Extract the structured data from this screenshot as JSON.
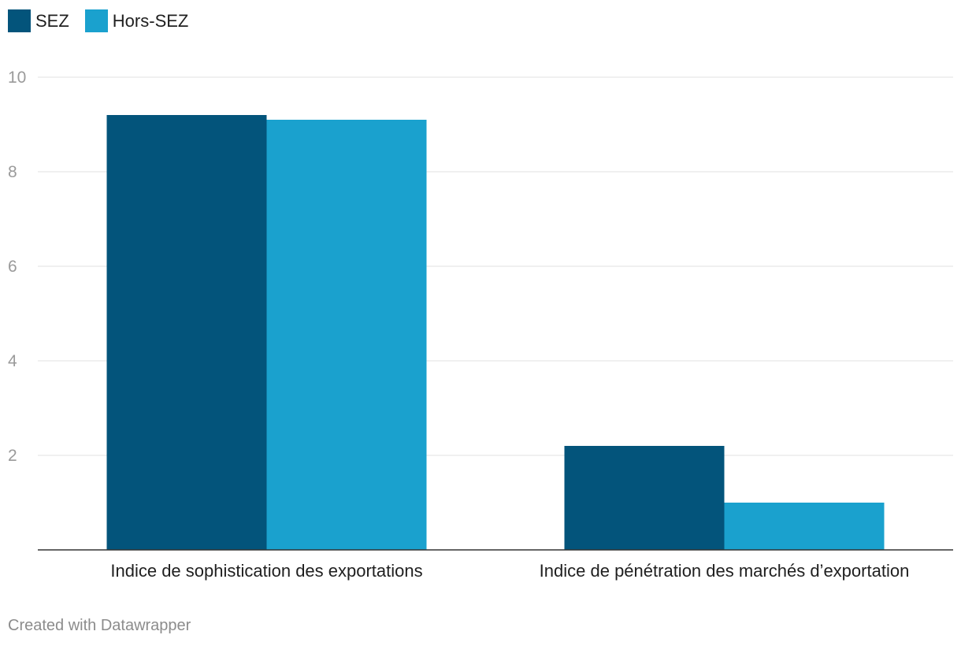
{
  "chart_data": {
    "type": "bar",
    "categories": [
      "Indice de sophistication des exportations",
      "Indice de pénétration des marchés d’exportation"
    ],
    "series": [
      {
        "name": "SEZ",
        "values": [
          9.2,
          2.2
        ],
        "color": "#03547b"
      },
      {
        "name": "Hors-SEZ",
        "values": [
          9.1,
          1.0
        ],
        "color": "#1aa1ce"
      }
    ],
    "title": "",
    "xlabel": "",
    "ylabel": "",
    "ylim": [
      0,
      10
    ],
    "yticks": [
      2,
      4,
      6,
      8,
      10
    ],
    "grid": true,
    "legend_position": "top-left"
  },
  "footer": {
    "credit": "Created with Datawrapper"
  }
}
